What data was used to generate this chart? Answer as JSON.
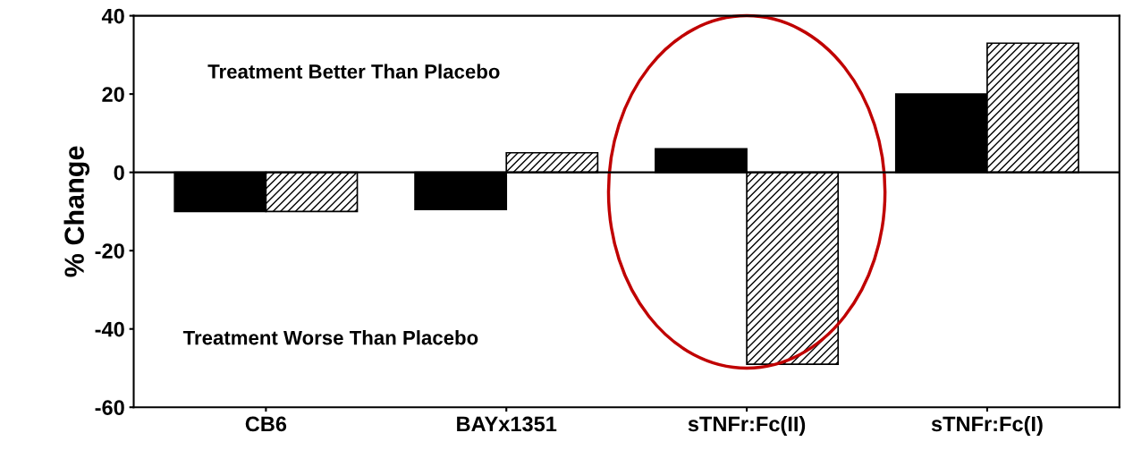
{
  "chart_data": {
    "type": "bar",
    "ylabel": "% Change",
    "categories": [
      "CB6",
      "BAYx1351",
      "sTNFr:Fc(II)",
      "sTNFr:Fc(I)"
    ],
    "series": [
      {
        "color": "#000000",
        "values": [
          -10,
          -9.5,
          6,
          20
        ]
      },
      {
        "color": "#000000",
        "values": [
          -10,
          5,
          -49,
          33
        ]
      }
    ],
    "ylim": [
      -60,
      40
    ],
    "yticks": [
      -60,
      -40,
      -20,
      0,
      20,
      40
    ],
    "grid": false,
    "ref_lines": [
      {
        "axis": "y",
        "value": 0
      }
    ],
    "legend": false,
    "annotations": [
      "Treatment Better Than Placebo",
      "Treatment Worse Than Placebo"
    ]
  }
}
